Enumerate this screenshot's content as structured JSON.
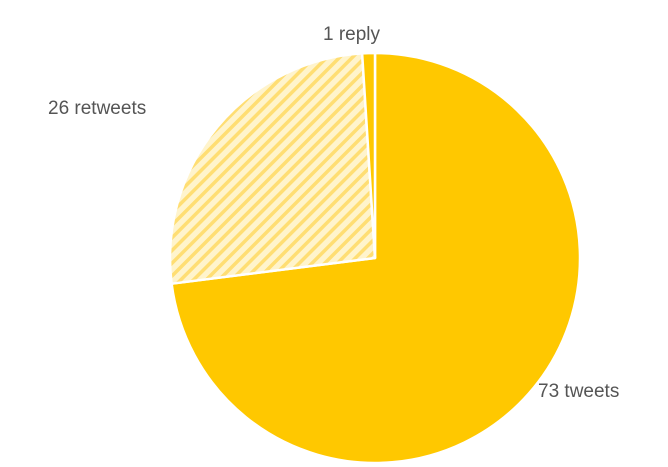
{
  "chart_data": {
    "type": "pie",
    "slices": [
      {
        "label": "tweets",
        "value": 73,
        "display_label": "73 tweets",
        "color": "#FFC800",
        "pattern": "solid"
      },
      {
        "label": "retweets",
        "value": 26,
        "display_label": "26 retweets",
        "color": "#FFC800",
        "pattern": "diagonal-stripes"
      },
      {
        "label": "reply",
        "value": 1,
        "display_label": "1 reply",
        "color": "#FFC800",
        "pattern": "solid"
      }
    ],
    "start": "top",
    "direction": "clockwise",
    "legend": "none",
    "label_color": "#555555"
  }
}
